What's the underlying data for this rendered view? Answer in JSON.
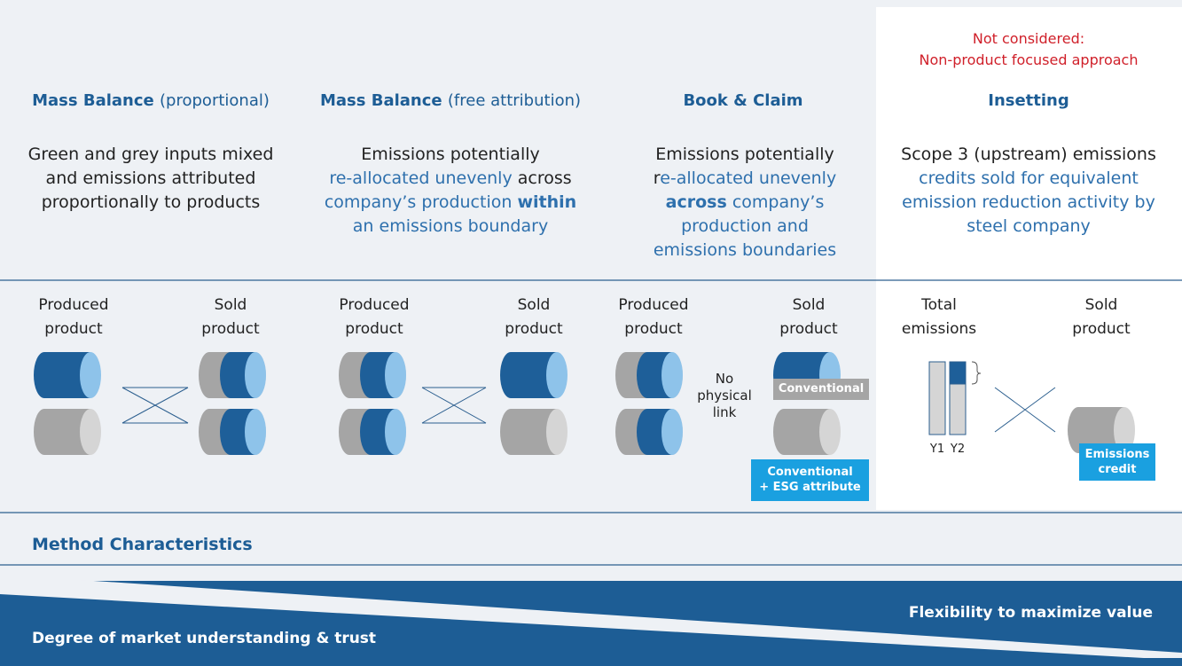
{
  "header_note": [
    "Not considered:",
    "Non-product focused approach"
  ],
  "columns": [
    {
      "title": [
        "Mass Balance",
        "(proportional)"
      ],
      "description": [
        [
          "Green and grey inputs mixed"
        ],
        [
          "and emissions attributed"
        ],
        [
          "proportionally to products"
        ]
      ],
      "left_label": [
        "Produced",
        "product"
      ],
      "right_label": [
        "Sold",
        "product"
      ]
    },
    {
      "title": [
        "Mass Balance",
        "(free attribution)"
      ],
      "description": [
        [
          "Emissions potentially"
        ],
        [
          "re-allocated unevenly",
          "across"
        ],
        [
          "company’s production",
          "within"
        ],
        [
          "an emissions boundary"
        ]
      ],
      "left_label": [
        "Produced",
        "product"
      ],
      "right_label": [
        "Sold",
        "product"
      ]
    },
    {
      "title": [
        "Book & Claim"
      ],
      "description": [
        [
          "Emissions potentially"
        ],
        [
          "r",
          "e-allocated unevenly"
        ],
        [
          "across",
          "company’s"
        ],
        [
          "production and"
        ],
        [
          "emissions boundaries"
        ]
      ],
      "left_label": [
        "Produced",
        "product"
      ],
      "right_label": [
        "Sold",
        "product"
      ],
      "middle_label": [
        "No",
        "physical",
        "link"
      ],
      "tags": [
        [
          "Conventional"
        ],
        [
          "Conventional",
          "+ ESG attribute"
        ]
      ]
    },
    {
      "title": [
        "Insetting"
      ],
      "description": [
        [
          "Scope 3 (upstream) emissions"
        ],
        [
          "credits sold for equivalent"
        ],
        [
          "emission reduction activity by"
        ],
        [
          "steel company"
        ]
      ],
      "left_label": [
        "Total",
        "emissions"
      ],
      "right_label": [
        "Sold",
        "product"
      ],
      "years": [
        "Y1",
        "Y2"
      ],
      "tag": [
        "Emissions",
        "credit"
      ]
    }
  ],
  "section_title": "Method Characteristics",
  "bar_labels": {
    "right": "Flexibility to maximize value",
    "left": "Degree of market understanding & trust"
  }
}
